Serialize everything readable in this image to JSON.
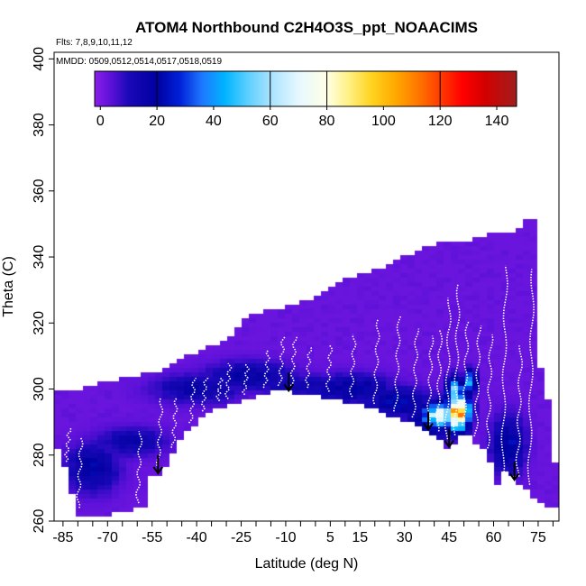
{
  "chart_data": {
    "type": "heatmap",
    "title": "ATOM4 Northbound C2H4O3S_ppt_NOAACIMS",
    "subtitle_flights": "Flts: 7,8,9,10,11,12",
    "subtitle_dates": "MMDD: 0509,0512,0514,0517,0518,0519",
    "xlabel": "Latitude (deg N)",
    "ylabel": "Theta (C)",
    "xlim": [
      -88,
      82
    ],
    "ylim": [
      260,
      402
    ],
    "x_ticks": [
      -85,
      -70,
      -55,
      -40,
      -25,
      -10,
      5,
      15,
      30,
      45,
      60,
      75
    ],
    "x_tick_labels": [
      "-85",
      "-70",
      "-55",
      "-40",
      "-25",
      "-10",
      "5",
      "15",
      "30",
      "45",
      "60",
      "75"
    ],
    "y_ticks": [
      260,
      280,
      300,
      320,
      340,
      360,
      380,
      400
    ],
    "y_tick_labels": [
      "260",
      "280",
      "300",
      "320",
      "340",
      "360",
      "380",
      "400"
    ],
    "colorbar": {
      "range": [
        -2,
        147
      ],
      "ticks": [
        0,
        20,
        40,
        60,
        80,
        100,
        120,
        140
      ],
      "tick_labels": [
        "0",
        "20",
        "40",
        "60",
        "80",
        "100",
        "120",
        "140"
      ],
      "boundaries": [
        20,
        60,
        80,
        120
      ],
      "stops": [
        {
          "value": -2,
          "color": "#8a1fe8"
        },
        {
          "value": 4,
          "color": "#5a10d8"
        },
        {
          "value": 10,
          "color": "#1a08b8"
        },
        {
          "value": 20,
          "color": "#0000a0"
        },
        {
          "value": 28,
          "color": "#0020d8"
        },
        {
          "value": 36,
          "color": "#1e78ff"
        },
        {
          "value": 44,
          "color": "#00b4ff"
        },
        {
          "value": 52,
          "color": "#5ccfff"
        },
        {
          "value": 60,
          "color": "#a8e2ff"
        },
        {
          "value": 70,
          "color": "#e6f8ff"
        },
        {
          "value": 80,
          "color": "#ffffe6"
        },
        {
          "value": 88,
          "color": "#fff080"
        },
        {
          "value": 96,
          "color": "#ffd21e"
        },
        {
          "value": 104,
          "color": "#ffaa00"
        },
        {
          "value": 112,
          "color": "#ff7800"
        },
        {
          "value": 120,
          "color": "#ff3c00"
        },
        {
          "value": 128,
          "color": "#ff0000"
        },
        {
          "value": 136,
          "color": "#d20000"
        },
        {
          "value": 147,
          "color": "#a01e1e"
        }
      ]
    },
    "background_value": 2,
    "envelope_upper": [
      [
        -87,
        299
      ],
      [
        -79,
        300
      ],
      [
        -72,
        302
      ],
      [
        -60,
        304
      ],
      [
        -50,
        306
      ],
      [
        -44,
        310
      ],
      [
        -35,
        313
      ],
      [
        -28,
        316
      ],
      [
        -25,
        320
      ],
      [
        -20,
        323
      ],
      [
        -10,
        325
      ],
      [
        0,
        328
      ],
      [
        10,
        333
      ],
      [
        20,
        336
      ],
      [
        30,
        340
      ],
      [
        40,
        344
      ],
      [
        50,
        345
      ],
      [
        60,
        347
      ],
      [
        66,
        347
      ],
      [
        68,
        348
      ],
      [
        70,
        352
      ],
      [
        74,
        352
      ],
      [
        75,
        310
      ],
      [
        78,
        300
      ],
      [
        82,
        268
      ]
    ],
    "envelope_lower": [
      [
        82,
        264
      ],
      [
        79,
        264
      ],
      [
        75,
        266
      ],
      [
        71,
        270
      ],
      [
        67,
        272
      ],
      [
        64,
        276
      ],
      [
        62,
        268
      ],
      [
        60,
        276
      ],
      [
        58,
        280
      ],
      [
        55,
        283
      ],
      [
        52,
        285
      ],
      [
        50,
        287
      ],
      [
        47,
        284
      ],
      [
        45,
        282
      ],
      [
        40,
        286
      ],
      [
        35,
        289
      ],
      [
        30,
        290
      ],
      [
        25,
        292
      ],
      [
        15,
        295
      ],
      [
        5,
        297
      ],
      [
        0,
        298
      ],
      [
        -8,
        299
      ],
      [
        -15,
        299
      ],
      [
        -25,
        296
      ],
      [
        -35,
        294
      ],
      [
        -45,
        285
      ],
      [
        -50,
        277
      ],
      [
        -53,
        274
      ],
      [
        -55,
        276
      ],
      [
        -56,
        264
      ],
      [
        -70,
        262
      ],
      [
        -80,
        262
      ],
      [
        -84,
        276
      ],
      [
        -87,
        283
      ]
    ],
    "features": [
      {
        "lat": -75,
        "theta": 276,
        "sx": 6,
        "sy": 5,
        "value": 20
      },
      {
        "lat": -62,
        "theta": 284,
        "sx": 8,
        "sy": 3,
        "value": 16
      },
      {
        "lat": -40,
        "theta": 300,
        "sx": 10,
        "sy": 3,
        "value": 17
      },
      {
        "lat": -22,
        "theta": 304,
        "sx": 10,
        "sy": 3,
        "value": 18
      },
      {
        "lat": -5,
        "theta": 301,
        "sx": 12,
        "sy": 2.5,
        "value": 14
      },
      {
        "lat": 12,
        "theta": 300,
        "sx": 10,
        "sy": 3,
        "value": 20
      },
      {
        "lat": 28,
        "theta": 296,
        "sx": 8,
        "sy": 3,
        "value": 22
      },
      {
        "lat": 40,
        "theta": 291,
        "sx": 6,
        "sy": 4,
        "value": 28
      },
      {
        "lat": 48,
        "theta": 293,
        "sx": 2.5,
        "sy": 3.5,
        "value": 115
      },
      {
        "lat": 42,
        "theta": 292,
        "sx": 4,
        "sy": 2.5,
        "value": 72
      },
      {
        "lat": 47,
        "theta": 299,
        "sx": 2,
        "sy": 3,
        "value": 55
      },
      {
        "lat": 52,
        "theta": 302,
        "sx": 1.5,
        "sy": 2.5,
        "value": 45
      },
      {
        "lat": 65,
        "theta": 283,
        "sx": 4,
        "sy": 6,
        "value": 22
      }
    ],
    "flight_tracks_lat": [
      -84,
      -80,
      -60,
      -53,
      -48,
      -42,
      -38,
      -33,
      -30,
      -24,
      -17,
      -12,
      -8,
      -3,
      4,
      12,
      20,
      27,
      33,
      38,
      41,
      44,
      47,
      50,
      54,
      58,
      63,
      68,
      72
    ],
    "arrows_lat": [
      -53,
      -9,
      38,
      45,
      67
    ]
  }
}
